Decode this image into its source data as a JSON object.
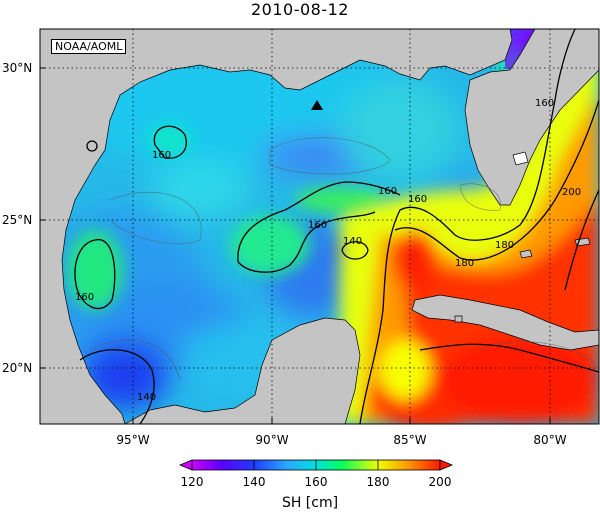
{
  "title": "2010-08-12",
  "credit": "NOAA/AOML",
  "lat_labels": [
    "30°N",
    "25°N",
    "20°N"
  ],
  "lon_labels": [
    "95°W",
    "90°W",
    "85°W",
    "80°W"
  ],
  "contour_labels": [
    "160",
    "160",
    "160",
    "160",
    "160",
    "160",
    "140",
    "140",
    "180",
    "180",
    "200"
  ],
  "colorbar": {
    "title": "SH [cm]",
    "ticks": [
      "120",
      "140",
      "160",
      "180",
      "200"
    ],
    "min": 120,
    "max": 200
  },
  "marker": "triangle"
}
